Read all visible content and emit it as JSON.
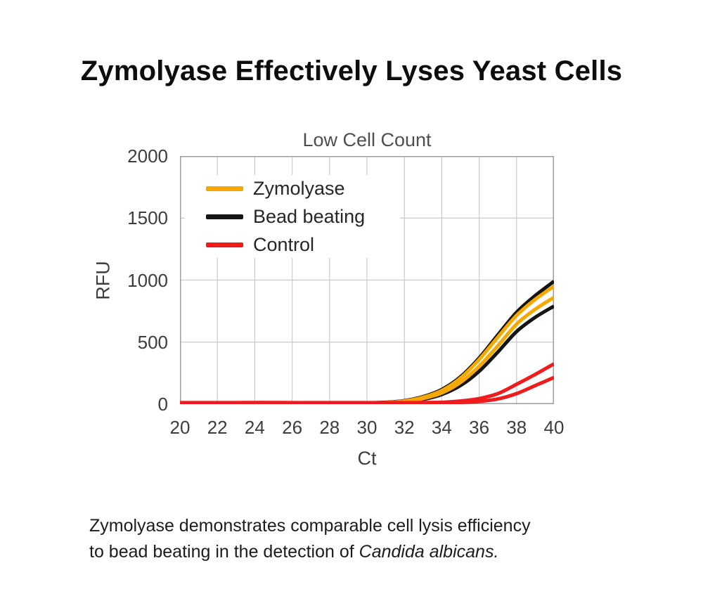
{
  "title": "Zymolyase Effectively Lyses Yeast Cells",
  "caption": {
    "line1": "Zymolyase demonstrates comparable cell lysis efficiency",
    "line2_prefix": "to bead beating in the detection of ",
    "line2_italic": "Candida albicans."
  },
  "colors": {
    "zymolyase": "#F5A800",
    "bead_beating": "#141414",
    "control": "#EE1C1C",
    "grid": "#cacaca",
    "frame": "#9e9e9e",
    "background": "#ffffff"
  },
  "chart_data": {
    "type": "line",
    "title": "Low Cell Count",
    "xlabel": "Ct",
    "ylabel": "RFU",
    "xlim": [
      20,
      40
    ],
    "ylim": [
      0,
      2000
    ],
    "xticks": [
      20,
      22,
      24,
      26,
      28,
      30,
      32,
      34,
      36,
      38,
      40
    ],
    "yticks": [
      0,
      500,
      1000,
      1500,
      2000
    ],
    "grid": true,
    "legend_position": "upper-left-inside",
    "x": [
      20,
      21,
      22,
      23,
      24,
      25,
      26,
      27,
      28,
      29,
      30,
      31,
      32,
      33,
      34,
      35,
      36,
      37,
      38,
      39,
      40
    ],
    "series": [
      {
        "name": "Zymolyase",
        "color": "#F5A800",
        "replicates": [
          [
            8,
            8,
            8,
            8,
            8,
            8,
            8,
            8,
            8,
            8,
            9,
            13,
            25,
            55,
            110,
            210,
            360,
            540,
            715,
            845,
            950
          ],
          [
            8,
            8,
            8,
            8,
            8,
            8,
            8,
            8,
            8,
            8,
            8,
            11,
            20,
            45,
            90,
            175,
            305,
            470,
            645,
            765,
            860
          ]
        ]
      },
      {
        "name": "Bead beating",
        "color": "#141414",
        "replicates": [
          [
            8,
            8,
            8,
            8,
            8,
            8,
            8,
            8,
            8,
            8,
            10,
            15,
            28,
            60,
            118,
            220,
            372,
            558,
            740,
            875,
            990
          ],
          [
            8,
            8,
            8,
            8,
            8,
            8,
            8,
            8,
            8,
            8,
            8,
            10,
            17,
            38,
            78,
            150,
            265,
            420,
            585,
            700,
            790
          ]
        ]
      },
      {
        "name": "Control",
        "color": "#EE1C1C",
        "replicates": [
          [
            12,
            12,
            12,
            12,
            13,
            13,
            12,
            12,
            12,
            12,
            12,
            12,
            12,
            13,
            15,
            25,
            45,
            85,
            160,
            240,
            325
          ],
          [
            9,
            9,
            9,
            9,
            10,
            10,
            9,
            9,
            9,
            9,
            9,
            9,
            9,
            10,
            11,
            14,
            22,
            42,
            85,
            150,
            215
          ]
        ]
      }
    ]
  }
}
